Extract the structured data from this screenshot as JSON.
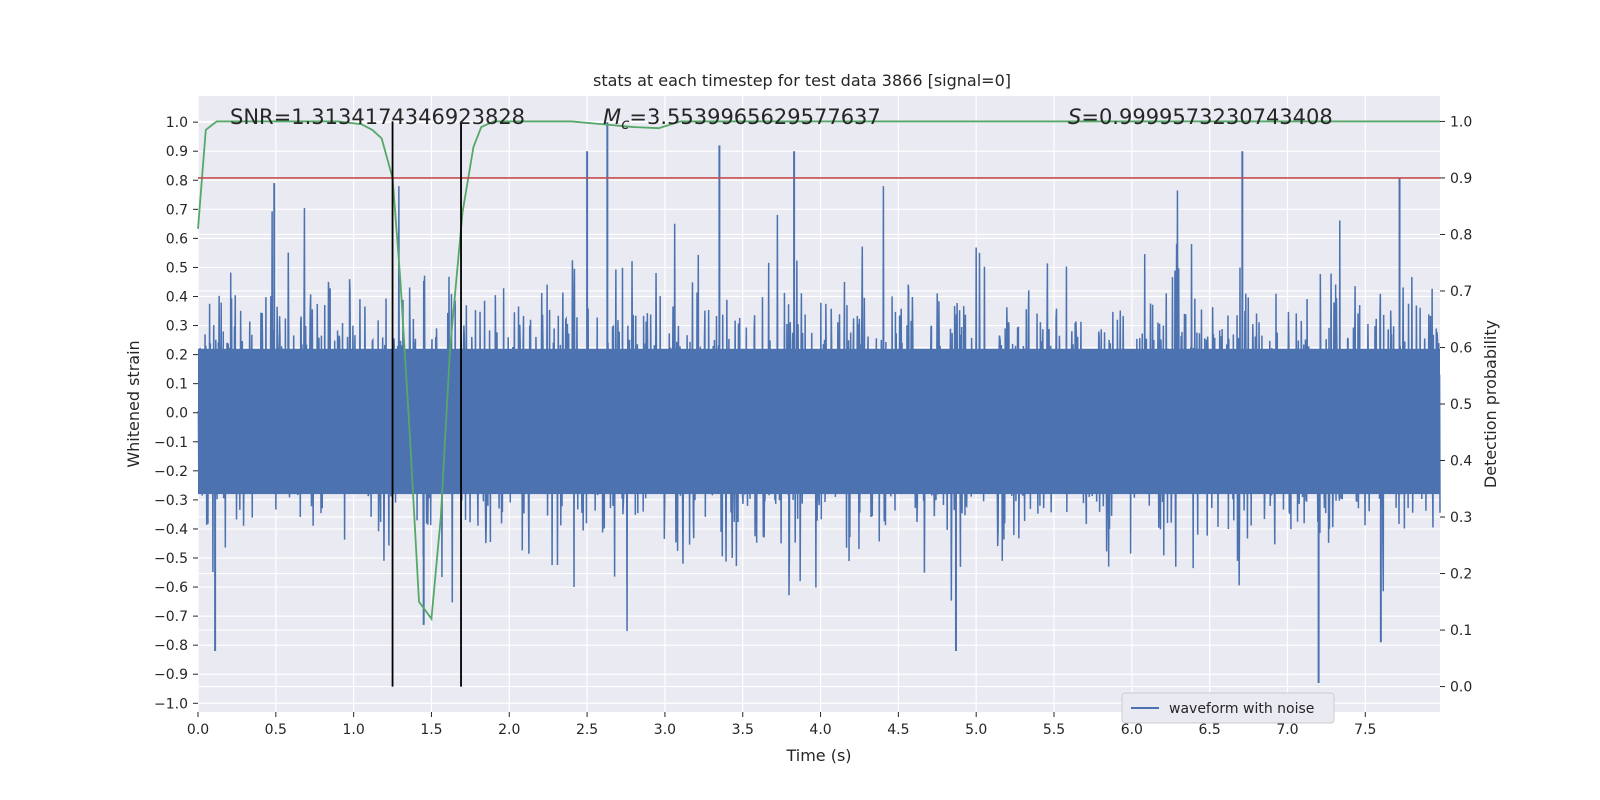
{
  "chart_data": {
    "type": "line",
    "title": "stats at each timestep for test data 3866 [signal=0]",
    "xlabel": "Time (s)",
    "ylabel": "Whitened strain",
    "y2label": "Detection probability",
    "xlim": [
      0.0,
      7.98
    ],
    "ylim": [
      -1.03,
      1.09
    ],
    "y2lim": [
      -0.045,
      1.045
    ],
    "xticks": [
      "0.0",
      "0.5",
      "1.0",
      "1.5",
      "2.0",
      "2.5",
      "3.0",
      "3.5",
      "4.0",
      "4.5",
      "5.0",
      "5.5",
      "6.0",
      "6.5",
      "7.0",
      "7.5"
    ],
    "yticks": [
      "1.0",
      "0.9",
      "0.8",
      "0.7",
      "0.6",
      "0.5",
      "0.4",
      "0.3",
      "0.2",
      "0.1",
      "0.0",
      "−0.1",
      "−0.2",
      "−0.3",
      "−0.4",
      "−0.5",
      "−0.6",
      "−0.7",
      "−0.8",
      "−0.9",
      "−1.0"
    ],
    "y2ticks": [
      "1.0",
      "0.9",
      "0.8",
      "0.7",
      "0.6",
      "0.5",
      "0.4",
      "0.3",
      "0.2",
      "0.1",
      "0.0"
    ],
    "grid": true,
    "legend_position": "lower-right",
    "annotations": {
      "snr_text": "SNR=1.3134174346923828",
      "mc_prefix": "M",
      "mc_sub": "c",
      "mc_value": "=3.5539965629577637",
      "s_prefix": "S",
      "s_value": "=0.9999573230743408"
    },
    "series": [
      {
        "name": "waveform with noise",
        "axis": "left",
        "color": "#4c72b0",
        "style": "noise",
        "x_range": [
          0.0,
          7.98
        ],
        "envelope_upper": 0.45,
        "envelope_lower": -0.45,
        "notable_peaks": [
          {
            "x": 0.49,
            "y": 0.79
          },
          {
            "x": 2.63,
            "y": 1.0
          },
          {
            "x": 2.5,
            "y": 0.9
          },
          {
            "x": 3.35,
            "y": 0.92
          },
          {
            "x": 3.83,
            "y": 0.9
          },
          {
            "x": 6.71,
            "y": 0.9
          },
          {
            "x": 7.72,
            "y": 0.81
          },
          {
            "x": 0.11,
            "y": -0.82
          },
          {
            "x": 1.45,
            "y": -0.73
          },
          {
            "x": 4.87,
            "y": -0.82
          },
          {
            "x": 7.2,
            "y": -0.93
          },
          {
            "x": 7.6,
            "y": -0.79
          }
        ]
      },
      {
        "name": "",
        "axis": "right",
        "color": "#55a868",
        "x": [
          0.0,
          0.05,
          0.12,
          0.3,
          0.6,
          0.9,
          1.05,
          1.12,
          1.18,
          1.25,
          1.3,
          1.36,
          1.42,
          1.5,
          1.56,
          1.62,
          1.7,
          1.77,
          1.82,
          1.9,
          2.1,
          2.4,
          2.6,
          2.8,
          2.96,
          3.1,
          3.5,
          4.0,
          5.0,
          6.0,
          7.0,
          7.98
        ],
        "y": [
          0.81,
          0.985,
          1.0,
          1.0,
          1.0,
          1.0,
          0.995,
          0.985,
          0.97,
          0.9,
          0.72,
          0.45,
          0.15,
          0.12,
          0.3,
          0.6,
          0.84,
          0.955,
          0.99,
          1.0,
          1.0,
          1.0,
          0.995,
          0.99,
          0.988,
          1.0,
          1.0,
          1.0,
          1.0,
          1.0,
          1.0,
          1.0
        ]
      },
      {
        "name": "",
        "axis": "right",
        "color": "#c44e52",
        "style": "hline",
        "y": 0.9
      }
    ],
    "vlines": [
      1.25,
      1.69
    ]
  }
}
